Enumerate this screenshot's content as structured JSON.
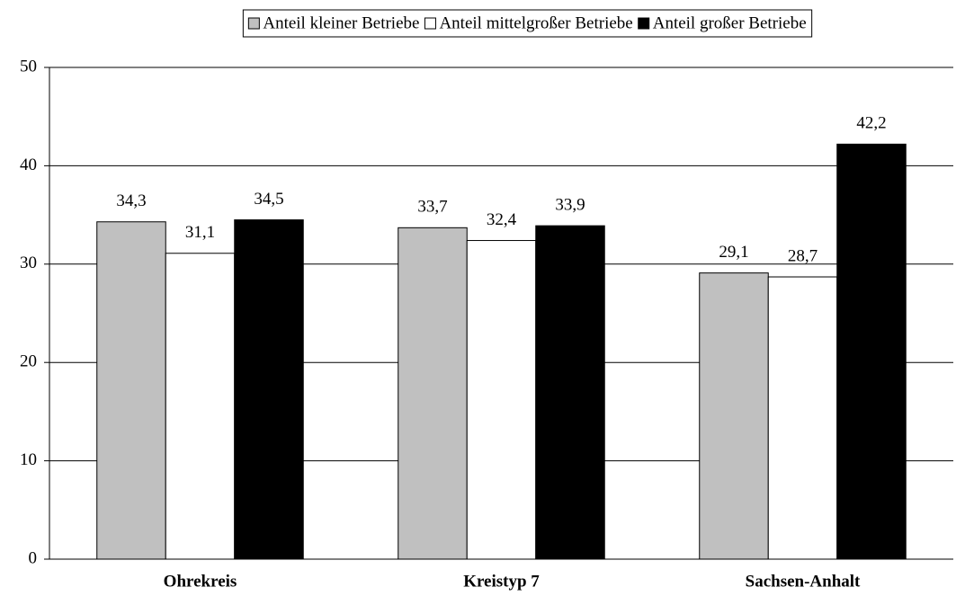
{
  "chart_data": {
    "type": "bar",
    "categories": [
      "Ohrekreis",
      "Kreistyp 7",
      "Sachsen-Anhalt"
    ],
    "series": [
      {
        "name": "Anteil kleiner Betriebe",
        "color": "#c0c0c0",
        "values": [
          34.3,
          33.7,
          29.1
        ],
        "value_labels": [
          "34,3",
          "33,7",
          "29,1"
        ]
      },
      {
        "name": "Anteil mittelgroßer Betriebe",
        "color": "#ffffff",
        "values": [
          31.1,
          32.4,
          28.7
        ],
        "value_labels": [
          "31,1",
          "32,4",
          "28,7"
        ]
      },
      {
        "name": "Anteil großer Betriebe",
        "color": "#000000",
        "values": [
          34.5,
          33.9,
          42.2
        ],
        "value_labels": [
          "34,5",
          "33,9",
          "42,2"
        ]
      }
    ],
    "ylim": [
      0,
      50
    ],
    "yticks": [
      0,
      10,
      20,
      30,
      40,
      50
    ],
    "grid": true,
    "legend": "top"
  }
}
